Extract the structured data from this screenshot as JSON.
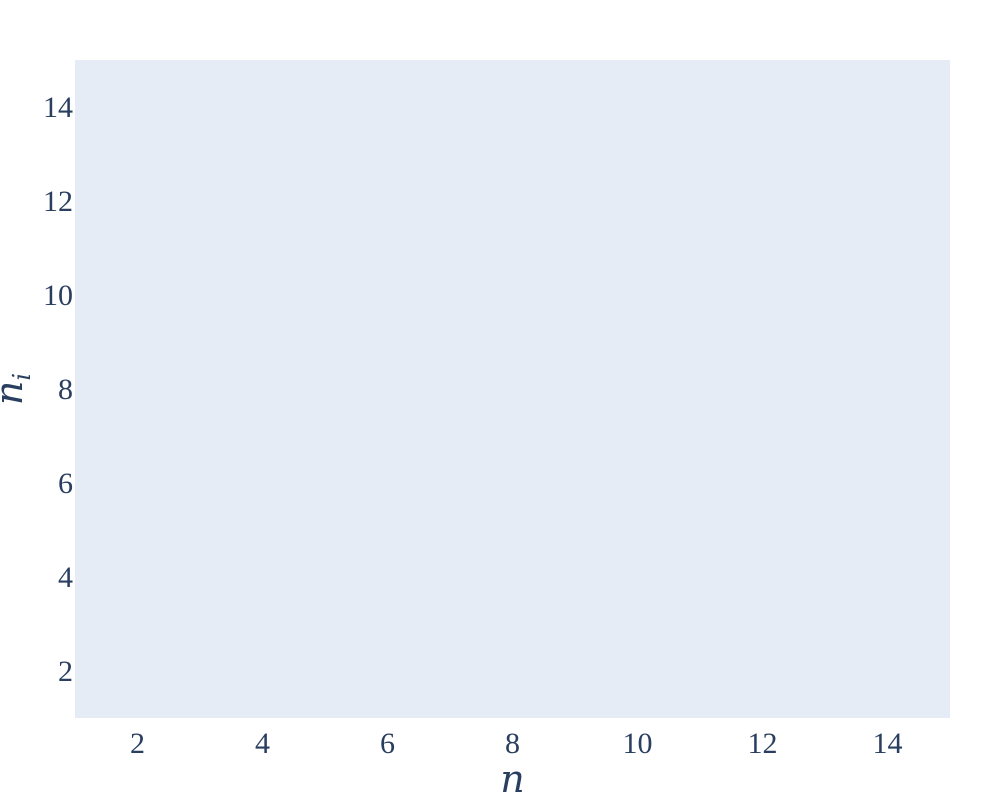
{
  "chart_data": {
    "type": "scatter",
    "title": "",
    "xlabel": "n",
    "ylabel_main": "n",
    "ylabel_sub": "i",
    "xlim": [
      1,
      15
    ],
    "ylim": [
      1,
      15
    ],
    "xticks": [
      2,
      4,
      6,
      8,
      10,
      12,
      14
    ],
    "yticks": [
      2,
      4,
      6,
      8,
      10,
      12,
      14
    ],
    "grid": false,
    "legend": "none",
    "series": [],
    "colors": {
      "plot_background": "#e5ecf6",
      "paper_background": "#ffffff",
      "text": "#2a3f5f"
    }
  }
}
